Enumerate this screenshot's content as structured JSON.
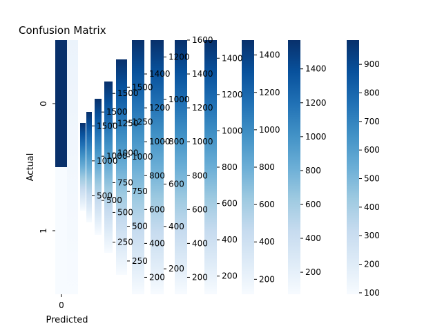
{
  "colors": {
    "map": [
      "#f7fbff",
      "#deebf7",
      "#c6dbef",
      "#9ecae1",
      "#6baed6",
      "#4292c6",
      "#2171b5",
      "#08519c",
      "#08306b"
    ],
    "text": "#000000",
    "axis": "#000000"
  },
  "chart_data": {
    "type": "heatmap",
    "title": "Confusion Matrix",
    "xlabel": "Predicted",
    "ylabel": "Actual",
    "x_tick_labels": [
      "0"
    ],
    "y_tick_labels": [
      "0",
      "1"
    ],
    "layers": [
      {
        "values": [
          [
            1950,
            30
          ]
        ],
        "vmin": 30,
        "vmax": 1950,
        "ticks": []
      },
      {
        "values": [
          [
            1700,
            120
          ]
        ],
        "vmin": 120,
        "vmax": 1700,
        "ticks": [
          500,
          1000,
          1500
        ]
      },
      {
        "values": [
          [
            1650,
            110
          ]
        ],
        "vmin": 110,
        "vmax": 1650,
        "ticks": [
          500,
          1000,
          1500
        ]
      },
      {
        "values": [
          [
            1600,
            160
          ]
        ],
        "vmin": 160,
        "vmax": 1600,
        "ticks": [
          250,
          500,
          750,
          1000,
          1250,
          1500
        ]
      },
      {
        "values": [
          [
            1700,
            150
          ]
        ],
        "vmin": 150,
        "vmax": 1700,
        "ticks": [
          250,
          500,
          750,
          1000,
          1250,
          1500
        ]
      },
      {
        "values": [
          [
            1600,
            100
          ]
        ],
        "vmin": 100,
        "vmax": 1600,
        "ticks": [
          200,
          400,
          600,
          800,
          1000,
          1200,
          1400
        ]
      },
      {
        "values": [
          [
            1280,
            80
          ]
        ],
        "vmin": 80,
        "vmax": 1280,
        "ticks": [
          200,
          400,
          600,
          800,
          1000,
          1200
        ]
      },
      {
        "values": [
          [
            1600,
            100
          ]
        ],
        "vmin": 100,
        "vmax": 1600,
        "ticks": [
          200,
          400,
          600,
          800,
          1000,
          1200,
          1400,
          1600
        ]
      },
      {
        "values": [
          [
            1500,
            100
          ]
        ],
        "vmin": 100,
        "vmax": 1500,
        "ticks": [
          200,
          400,
          600,
          800,
          1000,
          1200,
          1400
        ]
      },
      {
        "values": [
          [
            1480,
            120
          ]
        ],
        "vmin": 120,
        "vmax": 1480,
        "ticks": [
          200,
          400,
          600,
          800,
          1000,
          1200,
          1400
        ]
      },
      {
        "values": [
          [
            1570,
            70
          ]
        ],
        "vmin": 70,
        "vmax": 1570,
        "ticks": [
          200,
          400,
          600,
          800,
          1000,
          1200,
          1400
        ]
      },
      {
        "values": [
          [
            985,
            95
          ]
        ],
        "vmin": 95,
        "vmax": 985,
        "ticks": [
          100,
          200,
          300,
          400,
          500,
          600,
          700,
          800,
          900
        ]
      }
    ]
  }
}
